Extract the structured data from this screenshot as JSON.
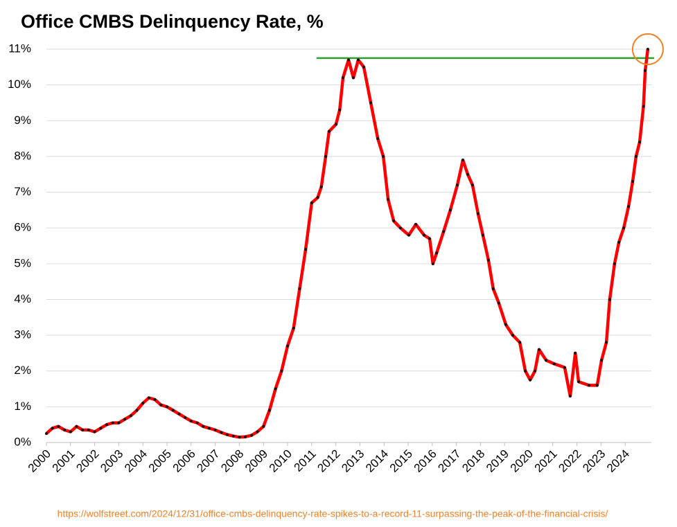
{
  "chart_data": {
    "type": "line",
    "title": "Office CMBS Delinquency Rate, %",
    "source": "https://wolfstreet.com/2024/12/31/office-cmbs-delinquency-rate-spikes-to-a-record-11-surpassing-the-peak-of-the-financial-crisis/",
    "x": [
      2000,
      2000.25,
      2000.5,
      2000.75,
      2001,
      2001.25,
      2001.5,
      2001.75,
      2002,
      2002.25,
      2002.5,
      2002.75,
      2003,
      2003.25,
      2003.5,
      2003.75,
      2004,
      2004.25,
      2004.5,
      2004.75,
      2005,
      2005.25,
      2005.5,
      2005.75,
      2006,
      2006.25,
      2006.5,
      2006.75,
      2007,
      2007.25,
      2007.5,
      2007.75,
      2008,
      2008.25,
      2008.5,
      2008.75,
      2009,
      2009.25,
      2009.5,
      2009.75,
      2010,
      2010.25,
      2010.5,
      2010.75,
      2011,
      2011.25,
      2011.4,
      2011.58,
      2011.72,
      2012.01,
      2012.16,
      2012.3,
      2012.53,
      2012.73,
      2012.93,
      2013.16,
      2013.45,
      2013.74,
      2013.97,
      2014.17,
      2014.4,
      2014.68,
      2015.03,
      2015.32,
      2015.66,
      2015.89,
      2016.03,
      2016.18,
      2016.47,
      2016.75,
      2017.04,
      2017.27,
      2017.47,
      2017.67,
      2017.9,
      2018.1,
      2018.33,
      2018.53,
      2018.76,
      2019.05,
      2019.34,
      2019.63,
      2019.86,
      2020.06,
      2020.26,
      2020.43,
      2020.72,
      2021.06,
      2021.49,
      2021.72,
      2021.93,
      2022.07,
      2022.5,
      2022.84,
      2023.02,
      2023.22,
      2023.36,
      2023.56,
      2023.74,
      2023.94,
      2024.14,
      2024.31,
      2024.45,
      2024.6,
      2024.76,
      2024.83,
      2024.94
    ],
    "series": [
      {
        "name": "Office CMBS Delinquency Rate",
        "color": "#ff0000",
        "values": [
          0.25,
          0.4,
          0.45,
          0.35,
          0.3,
          0.45,
          0.35,
          0.35,
          0.3,
          0.4,
          0.5,
          0.55,
          0.55,
          0.65,
          0.75,
          0.9,
          1.1,
          1.25,
          1.2,
          1.05,
          1.0,
          0.9,
          0.8,
          0.7,
          0.6,
          0.55,
          0.45,
          0.4,
          0.35,
          0.28,
          0.22,
          0.18,
          0.15,
          0.16,
          0.2,
          0.3,
          0.45,
          0.9,
          1.5,
          2.0,
          2.7,
          3.2,
          4.3,
          5.4,
          6.7,
          6.85,
          7.15,
          8.0,
          8.7,
          8.9,
          9.3,
          10.2,
          10.7,
          10.2,
          10.7,
          10.5,
          9.5,
          8.5,
          8.0,
          6.8,
          6.2,
          6.0,
          5.8,
          6.1,
          5.8,
          5.7,
          5.0,
          5.3,
          5.9,
          6.5,
          7.2,
          7.9,
          7.5,
          7.2,
          6.4,
          5.8,
          5.1,
          4.3,
          3.9,
          3.3,
          3.0,
          2.8,
          2.0,
          1.75,
          2.0,
          2.6,
          2.3,
          2.2,
          2.1,
          1.3,
          2.5,
          1.7,
          1.6,
          1.6,
          2.3,
          2.8,
          4.0,
          5.0,
          5.6,
          6.0,
          6.6,
          7.3,
          8.0,
          8.4,
          9.4,
          10.4,
          11.0
        ]
      }
    ],
    "reference_line": {
      "value": 10.75,
      "color": "#2ca02c",
      "x": [
        2011.2,
        2025.2
      ]
    },
    "xlim": [
      2000,
      2025
    ],
    "xticks": [
      2000,
      2001,
      2002,
      2003,
      2004,
      2005,
      2006,
      2007,
      2008,
      2009,
      2010,
      2011,
      2012,
      2013,
      2014,
      2015,
      2016,
      2017,
      2018,
      2019,
      2020,
      2021,
      2022,
      2023,
      2024
    ],
    "ylim": [
      0,
      11
    ],
    "yticks": [
      {
        "value": 0,
        "label": "0%"
      },
      {
        "value": 1,
        "label": "1%"
      },
      {
        "value": 2,
        "label": "2%"
      },
      {
        "value": 3,
        "label": "3%"
      },
      {
        "value": 4,
        "label": "4%"
      },
      {
        "value": 5,
        "label": "5%"
      },
      {
        "value": 6,
        "label": "6%"
      },
      {
        "value": 7,
        "label": "7%"
      },
      {
        "value": 8,
        "label": "8%"
      },
      {
        "value": 9,
        "label": "9%"
      },
      {
        "value": 10,
        "label": "10%"
      },
      {
        "value": 11,
        "label": "11%"
      }
    ],
    "grid": true
  }
}
